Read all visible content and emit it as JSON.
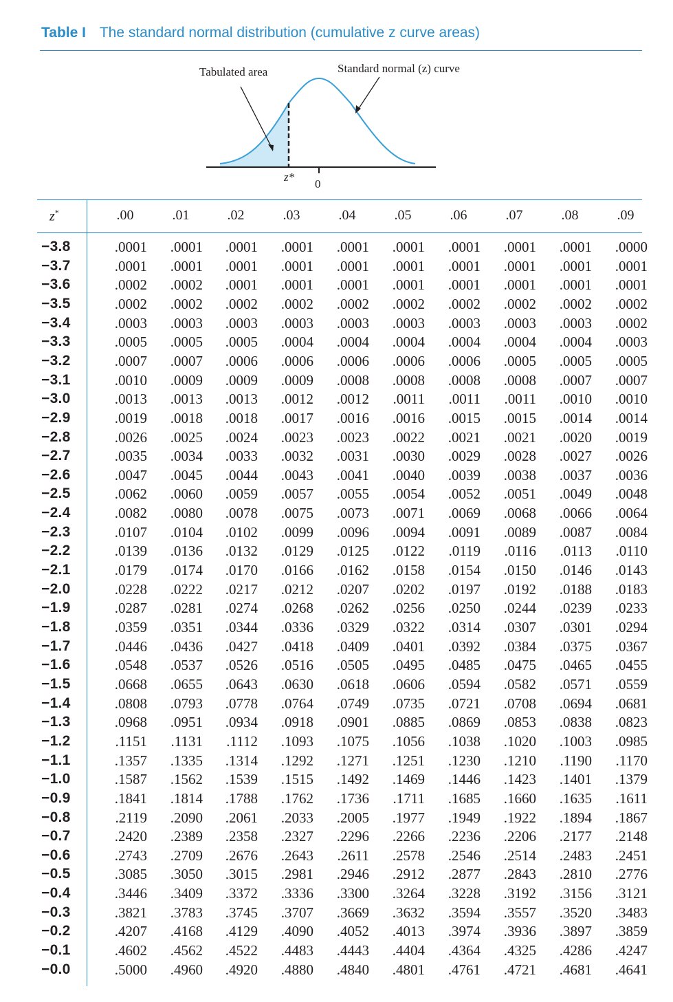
{
  "title": {
    "label": "Table I",
    "text": "The standard normal distribution (cumulative z curve areas)"
  },
  "figure": {
    "tabulated_area_label": "Tabulated area",
    "curve_label": "Standard normal (z) curve",
    "zstar_label": "z*",
    "zero_label": "0",
    "colors": {
      "fill": "#cde8f7",
      "curve": "#3aa0d8",
      "axis": "#231f20"
    }
  },
  "header": {
    "z_label": "z",
    "z_sup": "*",
    "columns": [
      ".00",
      ".01",
      ".02",
      ".03",
      ".04",
      ".05",
      ".06",
      ".07",
      ".08",
      ".09"
    ]
  },
  "rows": [
    {
      "z": "−3.8",
      "v": [
        ".0001",
        ".0001",
        ".0001",
        ".0001",
        ".0001",
        ".0001",
        ".0001",
        ".0001",
        ".0001",
        ".0000"
      ]
    },
    {
      "z": "−3.7",
      "v": [
        ".0001",
        ".0001",
        ".0001",
        ".0001",
        ".0001",
        ".0001",
        ".0001",
        ".0001",
        ".0001",
        ".0001"
      ]
    },
    {
      "z": "−3.6",
      "v": [
        ".0002",
        ".0002",
        ".0001",
        ".0001",
        ".0001",
        ".0001",
        ".0001",
        ".0001",
        ".0001",
        ".0001"
      ]
    },
    {
      "z": "−3.5",
      "v": [
        ".0002",
        ".0002",
        ".0002",
        ".0002",
        ".0002",
        ".0002",
        ".0002",
        ".0002",
        ".0002",
        ".0002"
      ]
    },
    {
      "z": "−3.4",
      "v": [
        ".0003",
        ".0003",
        ".0003",
        ".0003",
        ".0003",
        ".0003",
        ".0003",
        ".0003",
        ".0003",
        ".0002"
      ]
    },
    {
      "z": "−3.3",
      "v": [
        ".0005",
        ".0005",
        ".0005",
        ".0004",
        ".0004",
        ".0004",
        ".0004",
        ".0004",
        ".0004",
        ".0003"
      ]
    },
    {
      "z": "−3.2",
      "v": [
        ".0007",
        ".0007",
        ".0006",
        ".0006",
        ".0006",
        ".0006",
        ".0006",
        ".0005",
        ".0005",
        ".0005"
      ]
    },
    {
      "z": "−3.1",
      "v": [
        ".0010",
        ".0009",
        ".0009",
        ".0009",
        ".0008",
        ".0008",
        ".0008",
        ".0008",
        ".0007",
        ".0007"
      ]
    },
    {
      "z": "−3.0",
      "v": [
        ".0013",
        ".0013",
        ".0013",
        ".0012",
        ".0012",
        ".0011",
        ".0011",
        ".0011",
        ".0010",
        ".0010"
      ]
    },
    {
      "z": "−2.9",
      "v": [
        ".0019",
        ".0018",
        ".0018",
        ".0017",
        ".0016",
        ".0016",
        ".0015",
        ".0015",
        ".0014",
        ".0014"
      ]
    },
    {
      "z": "−2.8",
      "v": [
        ".0026",
        ".0025",
        ".0024",
        ".0023",
        ".0023",
        ".0022",
        ".0021",
        ".0021",
        ".0020",
        ".0019"
      ]
    },
    {
      "z": "−2.7",
      "v": [
        ".0035",
        ".0034",
        ".0033",
        ".0032",
        ".0031",
        ".0030",
        ".0029",
        ".0028",
        ".0027",
        ".0026"
      ]
    },
    {
      "z": "−2.6",
      "v": [
        ".0047",
        ".0045",
        ".0044",
        ".0043",
        ".0041",
        ".0040",
        ".0039",
        ".0038",
        ".0037",
        ".0036"
      ]
    },
    {
      "z": "−2.5",
      "v": [
        ".0062",
        ".0060",
        ".0059",
        ".0057",
        ".0055",
        ".0054",
        ".0052",
        ".0051",
        ".0049",
        ".0048"
      ]
    },
    {
      "z": "−2.4",
      "v": [
        ".0082",
        ".0080",
        ".0078",
        ".0075",
        ".0073",
        ".0071",
        ".0069",
        ".0068",
        ".0066",
        ".0064"
      ]
    },
    {
      "z": "−2.3",
      "v": [
        ".0107",
        ".0104",
        ".0102",
        ".0099",
        ".0096",
        ".0094",
        ".0091",
        ".0089",
        ".0087",
        ".0084"
      ]
    },
    {
      "z": "−2.2",
      "v": [
        ".0139",
        ".0136",
        ".0132",
        ".0129",
        ".0125",
        ".0122",
        ".0119",
        ".0116",
        ".0113",
        ".0110"
      ]
    },
    {
      "z": "−2.1",
      "v": [
        ".0179",
        ".0174",
        ".0170",
        ".0166",
        ".0162",
        ".0158",
        ".0154",
        ".0150",
        ".0146",
        ".0143"
      ]
    },
    {
      "z": "−2.0",
      "v": [
        ".0228",
        ".0222",
        ".0217",
        ".0212",
        ".0207",
        ".0202",
        ".0197",
        ".0192",
        ".0188",
        ".0183"
      ]
    },
    {
      "z": "−1.9",
      "v": [
        ".0287",
        ".0281",
        ".0274",
        ".0268",
        ".0262",
        ".0256",
        ".0250",
        ".0244",
        ".0239",
        ".0233"
      ]
    },
    {
      "z": "−1.8",
      "v": [
        ".0359",
        ".0351",
        ".0344",
        ".0336",
        ".0329",
        ".0322",
        ".0314",
        ".0307",
        ".0301",
        ".0294"
      ]
    },
    {
      "z": "−1.7",
      "v": [
        ".0446",
        ".0436",
        ".0427",
        ".0418",
        ".0409",
        ".0401",
        ".0392",
        ".0384",
        ".0375",
        ".0367"
      ]
    },
    {
      "z": "−1.6",
      "v": [
        ".0548",
        ".0537",
        ".0526",
        ".0516",
        ".0505",
        ".0495",
        ".0485",
        ".0475",
        ".0465",
        ".0455"
      ]
    },
    {
      "z": "−1.5",
      "v": [
        ".0668",
        ".0655",
        ".0643",
        ".0630",
        ".0618",
        ".0606",
        ".0594",
        ".0582",
        ".0571",
        ".0559"
      ]
    },
    {
      "z": "−1.4",
      "v": [
        ".0808",
        ".0793",
        ".0778",
        ".0764",
        ".0749",
        ".0735",
        ".0721",
        ".0708",
        ".0694",
        ".0681"
      ]
    },
    {
      "z": "−1.3",
      "v": [
        ".0968",
        ".0951",
        ".0934",
        ".0918",
        ".0901",
        ".0885",
        ".0869",
        ".0853",
        ".0838",
        ".0823"
      ]
    },
    {
      "z": "−1.2",
      "v": [
        ".1151",
        ".1131",
        ".1112",
        ".1093",
        ".1075",
        ".1056",
        ".1038",
        ".1020",
        ".1003",
        ".0985"
      ]
    },
    {
      "z": "−1.1",
      "v": [
        ".1357",
        ".1335",
        ".1314",
        ".1292",
        ".1271",
        ".1251",
        ".1230",
        ".1210",
        ".1190",
        ".1170"
      ]
    },
    {
      "z": "−1.0",
      "v": [
        ".1587",
        ".1562",
        ".1539",
        ".1515",
        ".1492",
        ".1469",
        ".1446",
        ".1423",
        ".1401",
        ".1379"
      ]
    },
    {
      "z": "−0.9",
      "v": [
        ".1841",
        ".1814",
        ".1788",
        ".1762",
        ".1736",
        ".1711",
        ".1685",
        ".1660",
        ".1635",
        ".1611"
      ]
    },
    {
      "z": "−0.8",
      "v": [
        ".2119",
        ".2090",
        ".2061",
        ".2033",
        ".2005",
        ".1977",
        ".1949",
        ".1922",
        ".1894",
        ".1867"
      ]
    },
    {
      "z": "−0.7",
      "v": [
        ".2420",
        ".2389",
        ".2358",
        ".2327",
        ".2296",
        ".2266",
        ".2236",
        ".2206",
        ".2177",
        ".2148"
      ]
    },
    {
      "z": "−0.6",
      "v": [
        ".2743",
        ".2709",
        ".2676",
        ".2643",
        ".2611",
        ".2578",
        ".2546",
        ".2514",
        ".2483",
        ".2451"
      ]
    },
    {
      "z": "−0.5",
      "v": [
        ".3085",
        ".3050",
        ".3015",
        ".2981",
        ".2946",
        ".2912",
        ".2877",
        ".2843",
        ".2810",
        ".2776"
      ]
    },
    {
      "z": "−0.4",
      "v": [
        ".3446",
        ".3409",
        ".3372",
        ".3336",
        ".3300",
        ".3264",
        ".3228",
        ".3192",
        ".3156",
        ".3121"
      ]
    },
    {
      "z": "−0.3",
      "v": [
        ".3821",
        ".3783",
        ".3745",
        ".3707",
        ".3669",
        ".3632",
        ".3594",
        ".3557",
        ".3520",
        ".3483"
      ]
    },
    {
      "z": "−0.2",
      "v": [
        ".4207",
        ".4168",
        ".4129",
        ".4090",
        ".4052",
        ".4013",
        ".3974",
        ".3936",
        ".3897",
        ".3859"
      ]
    },
    {
      "z": "−0.1",
      "v": [
        ".4602",
        ".4562",
        ".4522",
        ".4483",
        ".4443",
        ".4404",
        ".4364",
        ".4325",
        ".4286",
        ".4247"
      ]
    },
    {
      "z": "−0.0",
      "v": [
        ".5000",
        ".4960",
        ".4920",
        ".4880",
        ".4840",
        ".4801",
        ".4761",
        ".4721",
        ".4681",
        ".4641"
      ]
    }
  ]
}
